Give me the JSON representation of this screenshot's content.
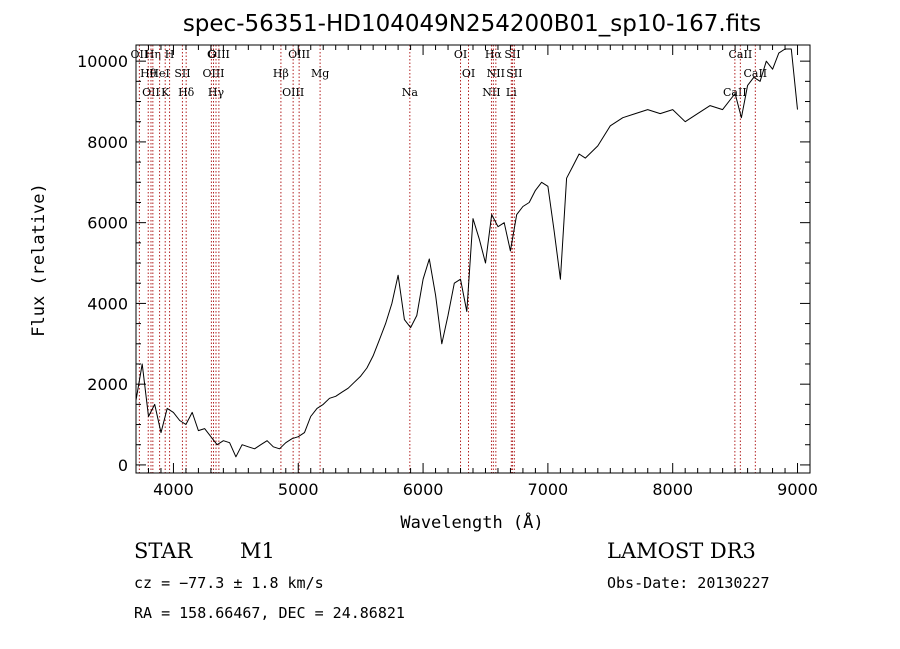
{
  "chart_data": {
    "type": "line",
    "title": "spec-56351-HD104049N254200B01_sp10-167.fits",
    "xlabel": "Wavelength (Å)",
    "ylabel": "Flux (relative)",
    "xlim": [
      3700,
      9100
    ],
    "ylim": [
      -200,
      10400
    ],
    "xticks": [
      4000,
      5000,
      6000,
      7000,
      8000,
      9000
    ],
    "yticks": [
      0,
      2000,
      4000,
      6000,
      8000,
      10000
    ],
    "x": [
      3700,
      3750,
      3800,
      3850,
      3900,
      3950,
      4000,
      4050,
      4100,
      4150,
      4200,
      4250,
      4300,
      4350,
      4400,
      4450,
      4500,
      4550,
      4600,
      4650,
      4700,
      4750,
      4800,
      4850,
      4900,
      4950,
      5000,
      5050,
      5100,
      5150,
      5200,
      5250,
      5300,
      5350,
      5400,
      5450,
      5500,
      5550,
      5600,
      5650,
      5700,
      5750,
      5800,
      5850,
      5900,
      5950,
      6000,
      6050,
      6100,
      6150,
      6200,
      6250,
      6300,
      6350,
      6400,
      6450,
      6500,
      6550,
      6600,
      6650,
      6700,
      6750,
      6800,
      6850,
      6900,
      6950,
      7000,
      7050,
      7100,
      7150,
      7200,
      7250,
      7300,
      7400,
      7500,
      7600,
      7700,
      7800,
      7900,
      8000,
      8100,
      8200,
      8300,
      8400,
      8500,
      8550,
      8600,
      8650,
      8700,
      8750,
      8800,
      8850,
      8900,
      8950,
      9000
    ],
    "values": [
      1600,
      2500,
      1200,
      1500,
      800,
      1400,
      1300,
      1100,
      1000,
      1300,
      850,
      900,
      700,
      500,
      600,
      550,
      200,
      500,
      450,
      400,
      500,
      600,
      450,
      400,
      550,
      650,
      700,
      800,
      1200,
      1400,
      1500,
      1650,
      1700,
      1800,
      1900,
      2050,
      2200,
      2400,
      2700,
      3100,
      3500,
      4000,
      4700,
      3600,
      3400,
      3700,
      4600,
      5100,
      4200,
      3000,
      3700,
      4500,
      4600,
      3800,
      6100,
      5600,
      5000,
      6200,
      5900,
      6000,
      5300,
      6200,
      6400,
      6500,
      6800,
      7000,
      6900,
      5800,
      4600,
      7100,
      7400,
      7700,
      7600,
      7900,
      8400,
      8600,
      8700,
      8800,
      8700,
      8800,
      8500,
      8700,
      8900,
      8800,
      9200,
      8600,
      9400,
      9600,
      9500,
      10000,
      9800,
      10200,
      10300,
      10300,
      8800
    ],
    "lines": [
      {
        "name": "OII",
        "wl": 3727
      },
      {
        "name": "Hθ",
        "wl": 3798
      },
      {
        "name": "OII",
        "wl": 3820
      },
      {
        "name": "Hη",
        "wl": 3835
      },
      {
        "name": "HeI",
        "wl": 3889
      },
      {
        "name": "K",
        "wl": 3934
      },
      {
        "name": "H",
        "wl": 3969
      },
      {
        "name": "SII",
        "wl": 4072
      },
      {
        "name": "Hδ",
        "wl": 4102
      },
      {
        "name": "G",
        "wl": 4304
      },
      {
        "name": "OIII",
        "wl": 4321
      },
      {
        "name": "Hγ",
        "wl": 4341
      },
      {
        "name": "OIII",
        "wl": 4364
      },
      {
        "name": "Hβ",
        "wl": 4861
      },
      {
        "name": "OIII",
        "wl": 4959
      },
      {
        "name": "OIII",
        "wl": 5007
      },
      {
        "name": "Mg",
        "wl": 5175
      },
      {
        "name": "Na",
        "wl": 5894
      },
      {
        "name": "OI",
        "wl": 6300
      },
      {
        "name": "OI",
        "wl": 6364
      },
      {
        "name": "NII",
        "wl": 6548
      },
      {
        "name": "Hα",
        "wl": 6563
      },
      {
        "name": "NII",
        "wl": 6583
      },
      {
        "name": "Li",
        "wl": 6707
      },
      {
        "name": "SII",
        "wl": 6716
      },
      {
        "name": "SII",
        "wl": 6731
      },
      {
        "name": "CaII",
        "wl": 8498
      },
      {
        "name": "CaII",
        "wl": 8542
      },
      {
        "name": "CaII",
        "wl": 8662
      }
    ],
    "line_color": "#b22222"
  },
  "info": {
    "type": "STAR",
    "subclass": "M1",
    "survey": "LAMOST DR3",
    "cz": "cz = −77.3 ± 1.8 km/s",
    "obs_date": "Obs-Date: 20130227",
    "radec": "RA = 158.66467, DEC =  24.86821"
  }
}
